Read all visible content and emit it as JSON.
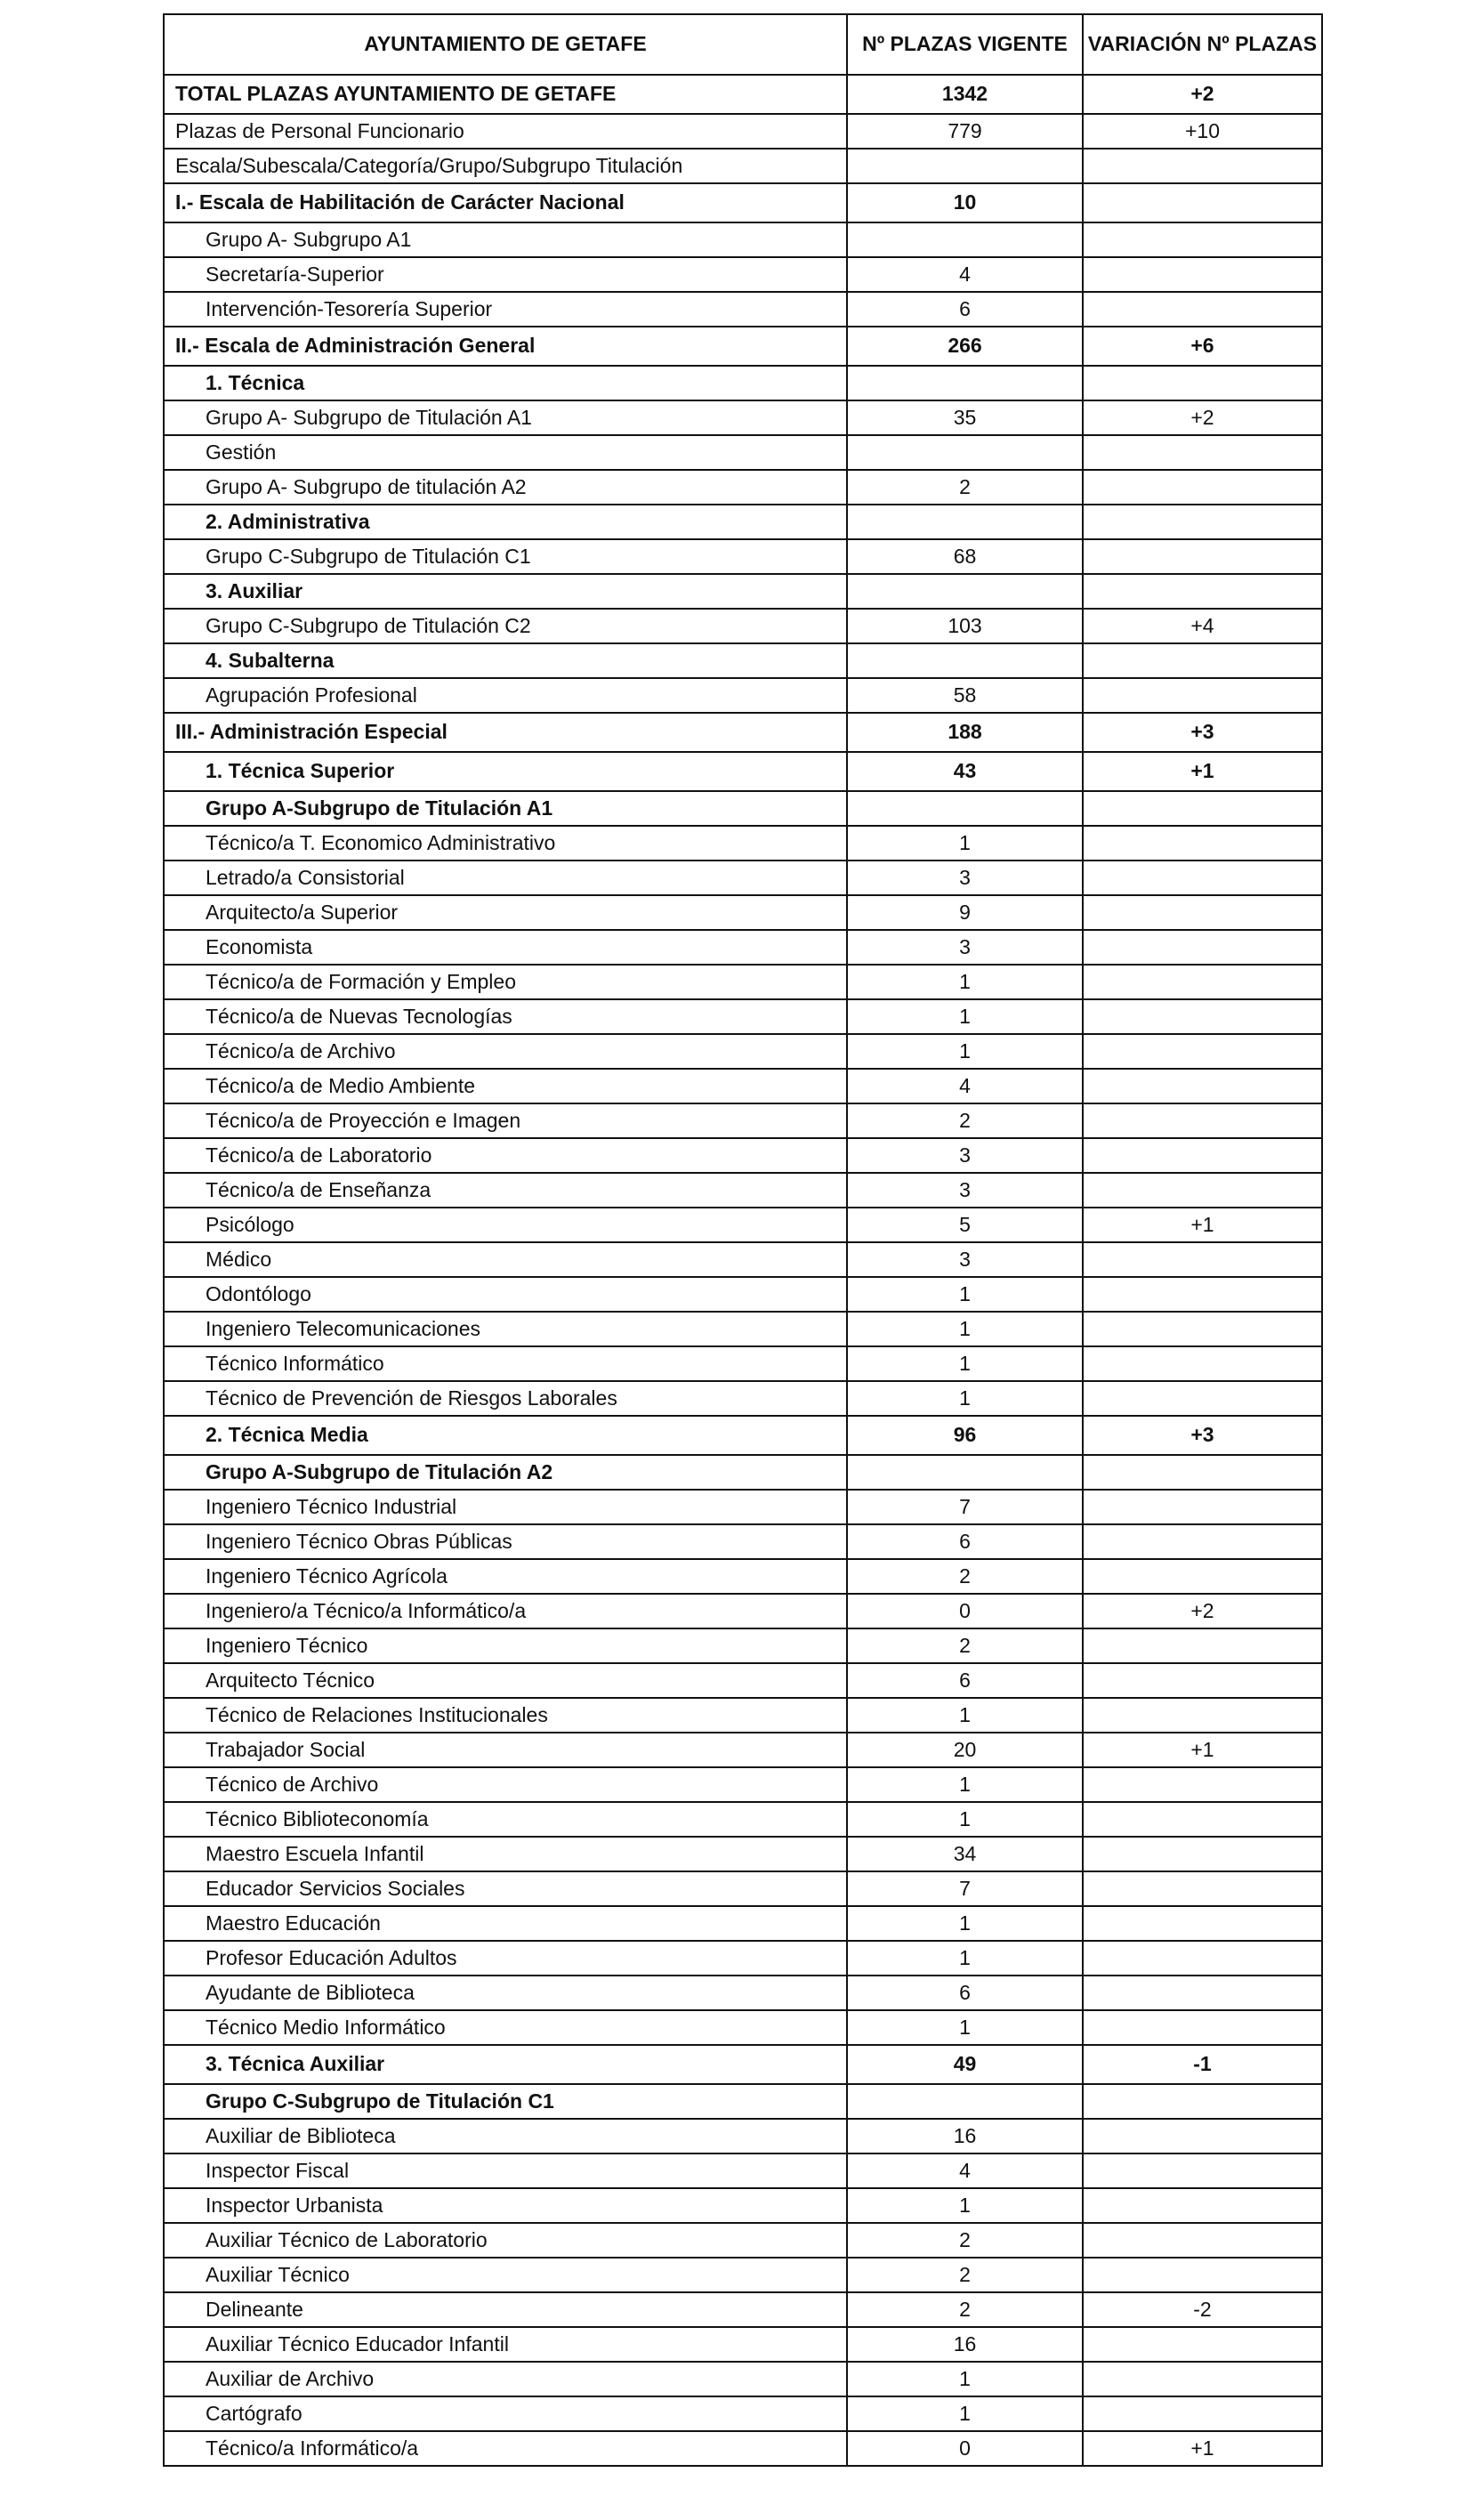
{
  "header": {
    "col1": "AYUNTAMIENTO DE GETAFE",
    "col2": "Nº PLAZAS VIGENTE",
    "col3": "VARIACIÓN Nº PLAZAS"
  },
  "rows": [
    {
      "label": "TOTAL PLAZAS AYUNTAMIENTO DE GETAFE",
      "plazas": "1342",
      "variacion": "+2",
      "bold": true,
      "indent": false,
      "major": true
    },
    {
      "label": "Plazas de Personal Funcionario",
      "plazas": "779",
      "variacion": "+10",
      "bold": false,
      "indent": false
    },
    {
      "label": "Escala/Subescala/Categoría/Grupo/Subgrupo Titulación",
      "plazas": "",
      "variacion": "",
      "bold": false,
      "indent": false
    },
    {
      "label": "I.- Escala de Habilitación de Carácter Nacional",
      "plazas": "10",
      "variacion": "",
      "bold": true,
      "indent": false,
      "major": true
    },
    {
      "label": "Grupo A- Subgrupo A1",
      "plazas": "",
      "variacion": "",
      "bold": false,
      "indent": true
    },
    {
      "label": "Secretaría-Superior",
      "plazas": "4",
      "variacion": "",
      "bold": false,
      "indent": true
    },
    {
      "label": "Intervención-Tesorería Superior",
      "plazas": "6",
      "variacion": "",
      "bold": false,
      "indent": true
    },
    {
      "label": "II.- Escala de Administración General",
      "plazas": "266",
      "variacion": "+6",
      "bold": true,
      "indent": false,
      "major": true
    },
    {
      "label": "1. Técnica",
      "plazas": "",
      "variacion": "",
      "bold": true,
      "indent": true
    },
    {
      "label": "Grupo A- Subgrupo de Titulación A1",
      "plazas": "35",
      "variacion": "+2",
      "bold": false,
      "indent": true
    },
    {
      "label": "Gestión",
      "plazas": "",
      "variacion": "",
      "bold": false,
      "indent": true
    },
    {
      "label": "Grupo A- Subgrupo de titulación A2",
      "plazas": "2",
      "variacion": "",
      "bold": false,
      "indent": true
    },
    {
      "label": "2. Administrativa",
      "plazas": "",
      "variacion": "",
      "bold": true,
      "indent": true
    },
    {
      "label": "Grupo C-Subgrupo de Titulación C1",
      "plazas": "68",
      "variacion": "",
      "bold": false,
      "indent": true
    },
    {
      "label": "3. Auxiliar",
      "plazas": "",
      "variacion": "",
      "bold": true,
      "indent": true
    },
    {
      "label": "Grupo C-Subgrupo de Titulación C2",
      "plazas": "103",
      "variacion": "+4",
      "bold": false,
      "indent": true
    },
    {
      "label": "4. Subalterna",
      "plazas": "",
      "variacion": "",
      "bold": true,
      "indent": true
    },
    {
      "label": "Agrupación Profesional",
      "plazas": "58",
      "variacion": "",
      "bold": false,
      "indent": true
    },
    {
      "label": "III.- Administración Especial",
      "plazas": "188",
      "variacion": "+3",
      "bold": true,
      "indent": false,
      "major": true
    },
    {
      "label": "1. Técnica Superior",
      "plazas": "43",
      "variacion": "+1",
      "bold": true,
      "indent": true,
      "major": true
    },
    {
      "label": "Grupo A-Subgrupo de Titulación A1",
      "plazas": "",
      "variacion": "",
      "bold": true,
      "indent": true
    },
    {
      "label": "Técnico/a T. Economico Administrativo",
      "plazas": "1",
      "variacion": "",
      "bold": false,
      "indent": true
    },
    {
      "label": "Letrado/a Consistorial",
      "plazas": "3",
      "variacion": "",
      "bold": false,
      "indent": true
    },
    {
      "label": "Arquitecto/a Superior",
      "plazas": "9",
      "variacion": "",
      "bold": false,
      "indent": true
    },
    {
      "label": "Economista",
      "plazas": "3",
      "variacion": "",
      "bold": false,
      "indent": true
    },
    {
      "label": "Técnico/a de Formación y Empleo",
      "plazas": "1",
      "variacion": "",
      "bold": false,
      "indent": true
    },
    {
      "label": "Técnico/a de Nuevas Tecnologías",
      "plazas": "1",
      "variacion": "",
      "bold": false,
      "indent": true
    },
    {
      "label": "Técnico/a de Archivo",
      "plazas": "1",
      "variacion": "",
      "bold": false,
      "indent": true
    },
    {
      "label": "Técnico/a de Medio Ambiente",
      "plazas": "4",
      "variacion": "",
      "bold": false,
      "indent": true
    },
    {
      "label": "Técnico/a de Proyección e Imagen",
      "plazas": "2",
      "variacion": "",
      "bold": false,
      "indent": true
    },
    {
      "label": "Técnico/a de Laboratorio",
      "plazas": "3",
      "variacion": "",
      "bold": false,
      "indent": true
    },
    {
      "label": "Técnico/a de Enseñanza",
      "plazas": "3",
      "variacion": "",
      "bold": false,
      "indent": true
    },
    {
      "label": "Psicólogo",
      "plazas": "5",
      "variacion": "+1",
      "bold": false,
      "indent": true
    },
    {
      "label": "Médico",
      "plazas": "3",
      "variacion": "",
      "bold": false,
      "indent": true
    },
    {
      "label": "Odontólogo",
      "plazas": "1",
      "variacion": "",
      "bold": false,
      "indent": true
    },
    {
      "label": "Ingeniero Telecomunicaciones",
      "plazas": "1",
      "variacion": "",
      "bold": false,
      "indent": true
    },
    {
      "label": "Técnico Informático",
      "plazas": "1",
      "variacion": "",
      "bold": false,
      "indent": true
    },
    {
      "label": "Técnico de Prevención de Riesgos Laborales",
      "plazas": "1",
      "variacion": "",
      "bold": false,
      "indent": true
    },
    {
      "label": "2. Técnica Media",
      "plazas": "96",
      "variacion": "+3",
      "bold": true,
      "indent": true,
      "major": true
    },
    {
      "label": "Grupo A-Subgrupo de Titulación A2",
      "plazas": "",
      "variacion": "",
      "bold": true,
      "indent": true
    },
    {
      "label": "Ingeniero Técnico Industrial",
      "plazas": "7",
      "variacion": "",
      "bold": false,
      "indent": true
    },
    {
      "label": "Ingeniero Técnico Obras Públicas",
      "plazas": "6",
      "variacion": "",
      "bold": false,
      "indent": true
    },
    {
      "label": "Ingeniero Técnico Agrícola",
      "plazas": "2",
      "variacion": "",
      "bold": false,
      "indent": true
    },
    {
      "label": "Ingeniero/a Técnico/a Informático/a",
      "plazas": "0",
      "variacion": "+2",
      "bold": false,
      "indent": true
    },
    {
      "label": "Ingeniero Técnico",
      "plazas": "2",
      "variacion": "",
      "bold": false,
      "indent": true
    },
    {
      "label": "Arquitecto Técnico",
      "plazas": "6",
      "variacion": "",
      "bold": false,
      "indent": true
    },
    {
      "label": "Técnico de Relaciones Institucionales",
      "plazas": "1",
      "variacion": "",
      "bold": false,
      "indent": true
    },
    {
      "label": "Trabajador Social",
      "plazas": "20",
      "variacion": "+1",
      "bold": false,
      "indent": true
    },
    {
      "label": "Técnico de Archivo",
      "plazas": "1",
      "variacion": "",
      "bold": false,
      "indent": true
    },
    {
      "label": "Técnico Biblioteconomía",
      "plazas": "1",
      "variacion": "",
      "bold": false,
      "indent": true
    },
    {
      "label": "Maestro Escuela Infantil",
      "plazas": "34",
      "variacion": "",
      "bold": false,
      "indent": true
    },
    {
      "label": "Educador Servicios Sociales",
      "plazas": "7",
      "variacion": "",
      "bold": false,
      "indent": true
    },
    {
      "label": "Maestro Educación",
      "plazas": "1",
      "variacion": "",
      "bold": false,
      "indent": true
    },
    {
      "label": "Profesor Educación Adultos",
      "plazas": "1",
      "variacion": "",
      "bold": false,
      "indent": true
    },
    {
      "label": "Ayudante de Biblioteca",
      "plazas": "6",
      "variacion": "",
      "bold": false,
      "indent": true
    },
    {
      "label": "Técnico Medio Informático",
      "plazas": "1",
      "variacion": "",
      "bold": false,
      "indent": true
    },
    {
      "label": "3. Técnica Auxiliar",
      "plazas": "49",
      "variacion": "-1",
      "bold": true,
      "indent": true,
      "major": true
    },
    {
      "label": "Grupo C-Subgrupo de Titulación C1",
      "plazas": "",
      "variacion": "",
      "bold": true,
      "indent": true
    },
    {
      "label": "Auxiliar de Biblioteca",
      "plazas": "16",
      "variacion": "",
      "bold": false,
      "indent": true
    },
    {
      "label": "Inspector Fiscal",
      "plazas": "4",
      "variacion": "",
      "bold": false,
      "indent": true
    },
    {
      "label": "Inspector Urbanista",
      "plazas": "1",
      "variacion": "",
      "bold": false,
      "indent": true
    },
    {
      "label": "Auxiliar Técnico de Laboratorio",
      "plazas": "2",
      "variacion": "",
      "bold": false,
      "indent": true
    },
    {
      "label": "Auxiliar Técnico",
      "plazas": "2",
      "variacion": "",
      "bold": false,
      "indent": true
    },
    {
      "label": "Delineante",
      "plazas": "2",
      "variacion": "-2",
      "bold": false,
      "indent": true
    },
    {
      "label": "Auxiliar Técnico Educador Infantil",
      "plazas": "16",
      "variacion": "",
      "bold": false,
      "indent": true
    },
    {
      "label": "Auxiliar de Archivo",
      "plazas": "1",
      "variacion": "",
      "bold": false,
      "indent": true
    },
    {
      "label": "Cartógrafo",
      "plazas": "1",
      "variacion": "",
      "bold": false,
      "indent": true
    },
    {
      "label": "Técnico/a Informático/a",
      "plazas": "0",
      "variacion": "+1",
      "bold": false,
      "indent": true
    }
  ]
}
